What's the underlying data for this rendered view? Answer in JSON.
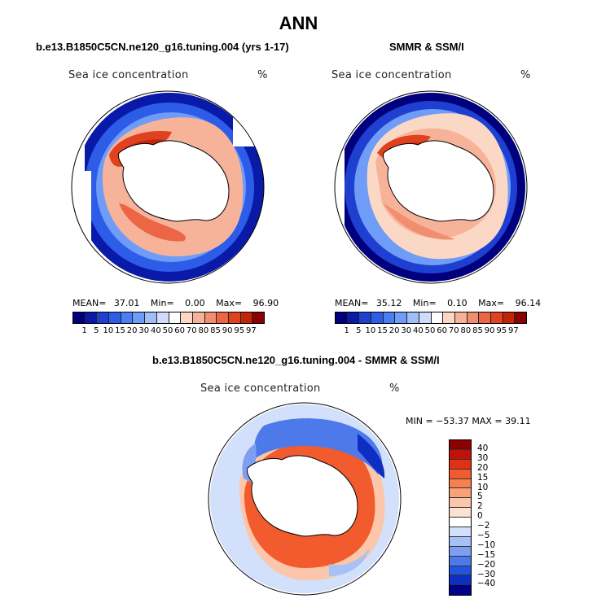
{
  "title": "ANN",
  "panels": [
    {
      "subtitle": "b.e13.B1850C5CN.ne120_g16.tuning.004 (yrs 1-17)",
      "variable": "Sea ice concentration",
      "units": "%",
      "mean_label": "MEAN=",
      "mean": "37.01",
      "min_label": "Min=",
      "min": "0.00",
      "max_label": "Max=",
      "max": "96.90"
    },
    {
      "subtitle": "SMMR & SSM/I",
      "variable": "Sea ice concentration",
      "units": "%",
      "mean_label": "MEAN=",
      "mean": "35.12",
      "min_label": "Min=",
      "min": "0.10",
      "max_label": "Max=",
      "max": "96.14"
    }
  ],
  "diff_panel": {
    "subtitle": "b.e13.B1850C5CN.ne120_g16.tuning.004 - SMMR & SSM/I",
    "variable": "Sea ice concentration",
    "units": "%",
    "stats": "MIN = −53.37 MAX =  39.11"
  },
  "concentration_colorbar": {
    "levels": [
      "1",
      "5",
      "10",
      "15",
      "20",
      "30",
      "40",
      "50",
      "60",
      "70",
      "80",
      "85",
      "90",
      "95",
      "97"
    ],
    "colors": [
      "#00007e",
      "#0a1aa8",
      "#1f3fd0",
      "#2d5ce8",
      "#4a7ef5",
      "#6f9cf7",
      "#9fbef8",
      "#cfdcfb",
      "#ffffff",
      "#fbd8c6",
      "#f7b39a",
      "#f28e70",
      "#ec6646",
      "#e0411e",
      "#c42508",
      "#8b0000"
    ]
  },
  "difference_colorbar": {
    "levels": [
      "40",
      "30",
      "20",
      "15",
      "10",
      "5",
      "2",
      "0",
      "−2",
      "−5",
      "−10",
      "−15",
      "−20",
      "−30",
      "−40"
    ],
    "colors": [
      "#8b0000",
      "#c0120a",
      "#e03212",
      "#f25b2e",
      "#f7804f",
      "#f9a27a",
      "#fbc6aa",
      "#fde2d2",
      "#ffffff",
      "#d3e0fb",
      "#a7c0f6",
      "#7c9ff1",
      "#4e79ea",
      "#2453de",
      "#0d2ec0",
      "#000089"
    ]
  }
}
